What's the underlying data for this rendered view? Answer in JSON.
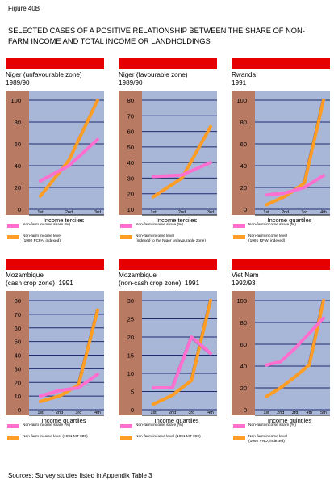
{
  "figure_label": "Figure 40B",
  "title": "SELECTED CASES OF A POSITIVE RELATIONSHIP BETWEEN THE SHARE OF NON-\nFARM INCOME AND TOTAL INCOME OR LANDHOLDINGS",
  "sources": "Sources: Survey studies listed in Appendix Table 3",
  "colors": {
    "header_bar": "#e60000",
    "y_axis_band": "#b97a63",
    "plot_background": "#a8b6d8",
    "gridline": "#1c2a6e",
    "share_line": "#ff6fcf",
    "level_line": "#ff9d24"
  },
  "chart_data": [
    {
      "type": "line",
      "title": "Niger (unfavourable zone)\n1989/90",
      "categories": [
        "1st",
        "2nd",
        "3rd"
      ],
      "xlabel": "Income terciles",
      "ylim": [
        0,
        100
      ],
      "yticks": [
        "0",
        "20",
        "40",
        "60",
        "80",
        "100"
      ],
      "series": [
        {
          "name": "Non-farm income share (%)",
          "values": [
            26,
            40,
            64
          ]
        },
        {
          "name": "Non-farm income level\n(1990 FCFA, indexed)",
          "values": [
            12,
            45,
            100
          ]
        }
      ]
    },
    {
      "type": "line",
      "title": "Niger (favourable zone)\n1989/90",
      "categories": [
        "1st",
        "2nd",
        "3rd"
      ],
      "xlabel": "Income terciles",
      "ylim": [
        10,
        80
      ],
      "yticks": [
        "10",
        "20",
        "30",
        "40",
        "50",
        "60",
        "70",
        "80"
      ],
      "series": [
        {
          "name": "Non-farm income share (%)",
          "values": [
            31,
            32,
            40
          ]
        },
        {
          "name": "Non-farm income level\n(indexed to the Niger unfavourable zone)",
          "values": [
            18,
            30,
            63
          ]
        }
      ]
    },
    {
      "type": "line",
      "title": "Rwanda\n1991",
      "categories": [
        "1st",
        "2nd",
        "3rd",
        "4th"
      ],
      "xlabel": "Income quartiles",
      "ylim": [
        0,
        100
      ],
      "yticks": [
        "0",
        "20",
        "40",
        "60",
        "80",
        "100"
      ],
      "series": [
        {
          "name": "Non-farm income share (%)",
          "values": [
            13,
            15,
            20,
            31
          ]
        },
        {
          "name": "Non-farm income level\n(1991 RFW, indexed)",
          "values": [
            4,
            12,
            24,
            100
          ]
        }
      ]
    },
    {
      "type": "line",
      "title": "Mozambique\n(cash crop zone)  1991",
      "categories": [
        "1st",
        "2nd",
        "3rd",
        "4th"
      ],
      "xlabel": "Income quartiles",
      "ylim": [
        0,
        80
      ],
      "yticks": [
        "0",
        "10",
        "20",
        "30",
        "40",
        "50",
        "60",
        "70",
        "80"
      ],
      "series": [
        {
          "name": "Non-farm income share (%)",
          "values": [
            10,
            14,
            16,
            26
          ]
        },
        {
          "name": "Non-farm income level (1991 MT 000)",
          "values": [
            6,
            10,
            18,
            73
          ]
        }
      ]
    },
    {
      "type": "line",
      "title": "Mozambique\n(non-cash crop zone)  1991",
      "categories": [
        "1st",
        "2nd",
        "3rd",
        "4th"
      ],
      "xlabel": "Income quartiles",
      "ylim": [
        0,
        30
      ],
      "yticks": [
        "0",
        "5",
        "10",
        "15",
        "20",
        "25",
        "30"
      ],
      "series": [
        {
          "name": "Non-farm income share (%)",
          "values": [
            6,
            6,
            20,
            15.5
          ]
        },
        {
          "name": "Non-farm income level (1991 MT 000)",
          "values": [
            1.5,
            4,
            8,
            30
          ]
        }
      ]
    },
    {
      "type": "line",
      "title": "Viet Nam\n1992/93",
      "categories": [
        "1st",
        "2nd",
        "3rd",
        "4th",
        "5th"
      ],
      "xlabel": "Income quintiles",
      "ylim": [
        0,
        100
      ],
      "yticks": [
        "0",
        "20",
        "40",
        "60",
        "80",
        "100"
      ],
      "series": [
        {
          "name": "Non-farm income share (%)",
          "values": [
            41,
            44,
            56,
            70,
            84
          ]
        },
        {
          "name": "Non-farm income level\n(1992 VND, indexed)",
          "values": [
            12,
            20,
            30,
            41,
            100
          ]
        }
      ]
    }
  ]
}
